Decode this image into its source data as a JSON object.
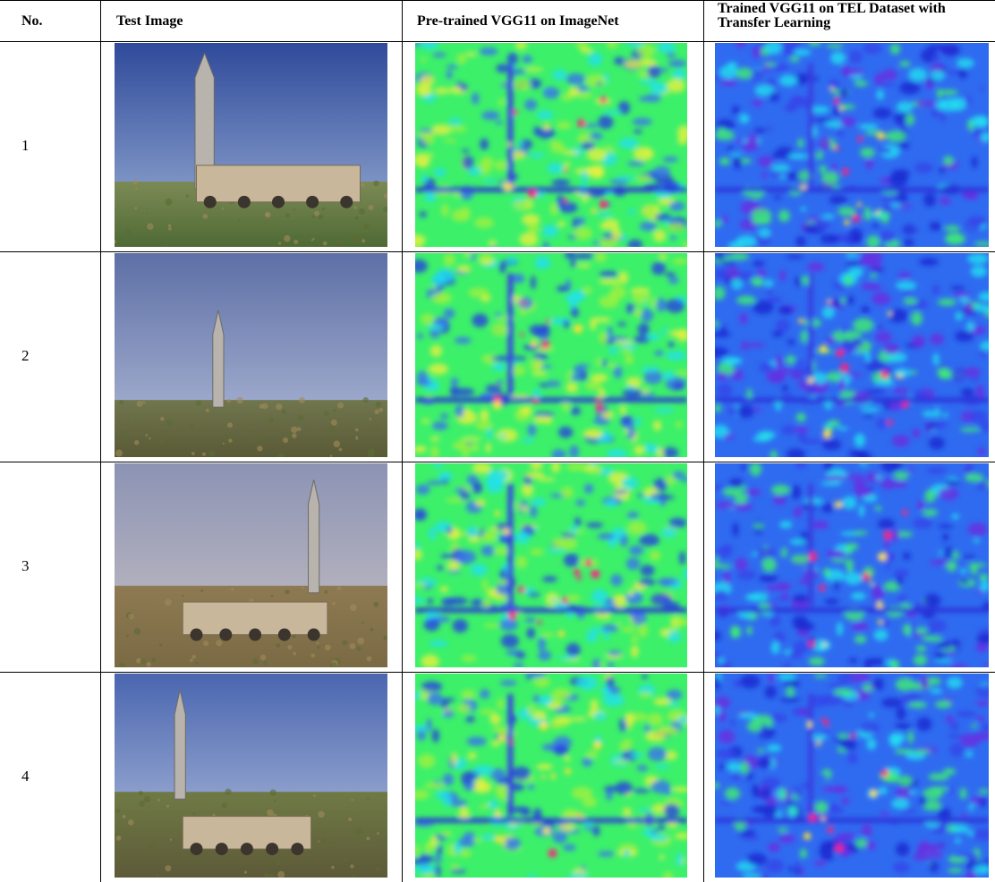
{
  "table": {
    "header": [
      "No.",
      "Test Image",
      "Pre-trained VGG11 on ImageNet",
      "Trained VGG11 on TEL Dataset with Transfer Learning"
    ],
    "rows": [
      [
        "1"
      ],
      [
        "2"
      ],
      [
        "3"
      ],
      [
        "4"
      ]
    ]
  }
}
